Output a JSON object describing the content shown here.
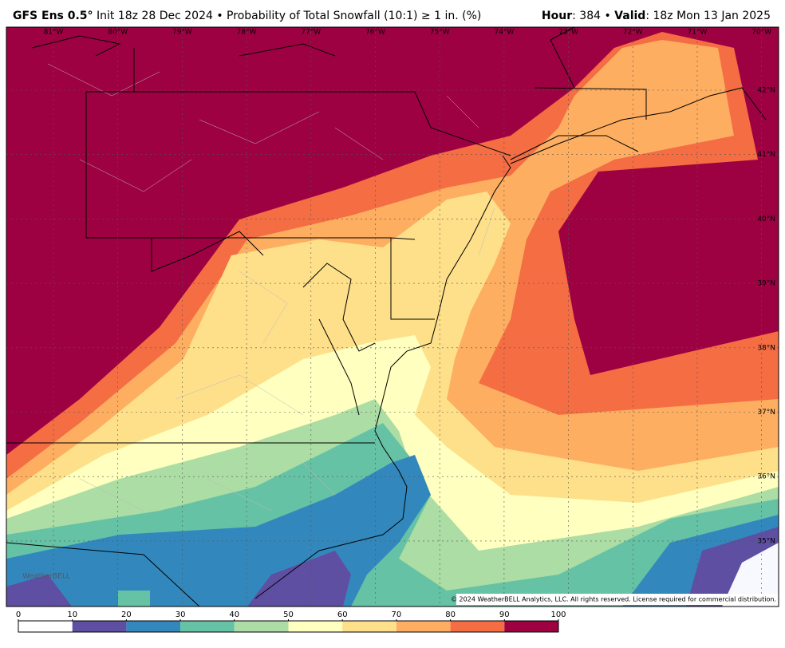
{
  "header": {
    "left": [
      "GFS Ens 0.5°",
      " Init 18z 28 Dec 2024 • Probability of Total Snowfall (10:1) ≥ 1 in. (%)"
    ],
    "right": [
      "Hour",
      ": 384 • ",
      "Valid",
      ": 18z Mon 13 Jan 2025"
    ]
  },
  "map": {
    "longitude_labels": [
      "81°W",
      "80°W",
      "79°W",
      "78°W",
      "77°W",
      "76°W",
      "75°W",
      "74°W",
      "73°W",
      "72°W",
      "71°W",
      "70°W"
    ],
    "latitude_labels": [
      "42°N",
      "41°N",
      "40°N",
      "39°N",
      "38°N",
      "37°N",
      "36°N",
      "35°N"
    ],
    "logo": "WeatherBELL",
    "copyright": "© 2024 WeatherBELL Analytics, LLC. All rights reserved. License required for commercial distribution."
  },
  "colorbar": {
    "ticks": [
      0,
      10,
      20,
      30,
      40,
      50,
      60,
      70,
      80,
      90,
      100
    ],
    "colors": [
      "#ffffff",
      "#5e4fa2",
      "#3288bd",
      "#66c2a5",
      "#abdda4",
      "#ffffbf",
      "#fee08b",
      "#fdae61",
      "#f46d43",
      "#9e0142"
    ]
  }
}
